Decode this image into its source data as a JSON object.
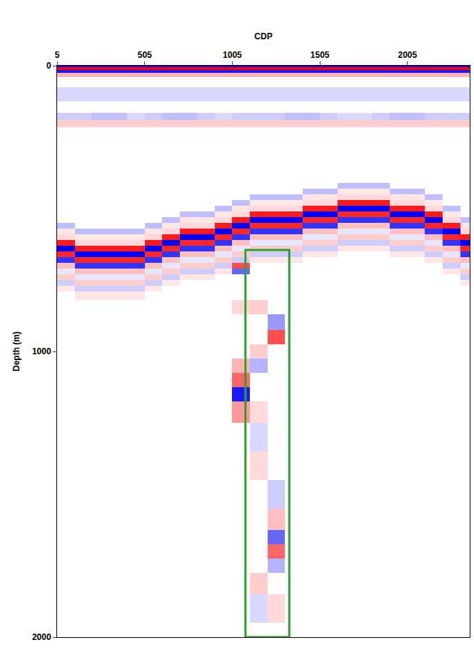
{
  "chart_data": {
    "type": "heatmap",
    "x_label": "CDP",
    "y_label": "Depth (m)",
    "xlim": [
      5,
      2360
    ],
    "xticks": [
      5,
      505,
      1005,
      1505,
      2005
    ],
    "ylim": [
      0,
      2000
    ],
    "yticks": [
      0,
      1000,
      2000
    ],
    "grid": false,
    "zlim": [
      -1,
      1
    ],
    "colors": [
      "#0000ff",
      "#ffffff",
      "#ff0000"
    ],
    "box": {
      "x": [
        1080,
        1330
      ],
      "y": [
        645,
        2000
      ],
      "color": "#2ca02c"
    },
    "x": [
      55,
      155,
      255,
      355,
      455,
      555,
      655,
      755,
      855,
      955,
      1055,
      1155,
      1255,
      1355,
      1455,
      1555,
      1655,
      1755,
      1855,
      1955,
      2055,
      2155,
      2255,
      2355
    ],
    "y": [
      0,
      10,
      20,
      30,
      50,
      100,
      150,
      180,
      200,
      230,
      300,
      360,
      400,
      420,
      440,
      460,
      480,
      500,
      520,
      540,
      560,
      580,
      600,
      620,
      640,
      660,
      680,
      700,
      720,
      740,
      760,
      780,
      800,
      840,
      900,
      950,
      1000,
      1050,
      1100,
      1150,
      1200,
      1300,
      1400,
      1500,
      1600,
      1650,
      1700,
      1750,
      1800,
      1900,
      2000
    ],
    "z": [
      [
        -1,
        -1,
        -1,
        -1,
        -1,
        -1,
        -1,
        -1,
        -1,
        -1,
        -1,
        -1,
        -1,
        -1,
        -1,
        -1,
        -1,
        -1,
        -1,
        -1,
        -1,
        -1,
        -1,
        -1
      ],
      [
        1,
        1,
        1,
        1,
        1,
        1,
        1,
        1,
        1,
        1,
        1,
        1,
        1,
        1,
        1,
        1,
        1,
        1,
        1,
        1,
        1,
        1,
        1,
        1
      ],
      [
        -0.9,
        -0.9,
        -0.9,
        -0.9,
        -0.9,
        -0.9,
        -0.9,
        -0.9,
        -0.9,
        -0.9,
        -0.9,
        -0.9,
        -0.9,
        -0.9,
        -0.9,
        -0.9,
        -0.9,
        -0.9,
        -0.9,
        -0.9,
        -0.9,
        -0.9,
        -0.9,
        -0.9
      ],
      [
        0.3,
        0.3,
        0.3,
        0.3,
        0.3,
        0.3,
        0.3,
        0.3,
        0.3,
        0.3,
        0.3,
        0.3,
        0.3,
        0.3,
        0.3,
        0.3,
        0.3,
        0.3,
        0.3,
        0.3,
        0.3,
        0.3,
        0.3,
        0.3
      ],
      [
        0,
        0,
        0,
        0,
        0,
        0,
        0,
        0,
        0,
        0,
        0,
        0,
        0,
        0,
        0,
        0,
        0,
        0,
        0,
        0,
        0,
        0,
        0,
        0
      ],
      [
        -0.15,
        -0.15,
        -0.15,
        -0.15,
        -0.15,
        -0.15,
        -0.15,
        -0.15,
        -0.15,
        -0.15,
        -0.15,
        -0.15,
        -0.15,
        -0.15,
        -0.15,
        -0.15,
        -0.15,
        -0.15,
        -0.15,
        -0.15,
        -0.15,
        -0.15,
        -0.15,
        -0.15
      ],
      [
        0,
        0,
        0,
        0,
        0,
        0,
        0,
        0,
        0,
        0,
        0,
        0,
        0,
        0,
        0,
        0,
        0,
        0,
        0,
        0,
        0,
        0,
        0,
        0
      ],
      [
        -0.2,
        -0.2,
        -0.25,
        -0.25,
        -0.15,
        -0.2,
        -0.25,
        -0.25,
        -0.2,
        -0.15,
        -0.2,
        -0.2,
        -0.2,
        -0.25,
        -0.25,
        -0.2,
        -0.15,
        -0.15,
        -0.2,
        -0.25,
        -0.25,
        -0.2,
        -0.2,
        -0.2
      ],
      [
        0.2,
        0.2,
        0.2,
        0.2,
        0.2,
        0.2,
        0.2,
        0.2,
        0.2,
        0.2,
        0.2,
        0.2,
        0.2,
        0.2,
        0.2,
        0.2,
        0.2,
        0.2,
        0.2,
        0.2,
        0.2,
        0.2,
        0.2,
        0.2
      ],
      [
        0,
        0,
        0,
        0,
        0,
        0,
        0,
        0,
        0,
        0,
        0,
        0,
        0,
        0,
        0,
        0,
        0,
        0,
        0,
        0,
        0,
        0,
        0,
        0
      ],
      [
        0,
        0,
        0,
        0,
        0,
        0,
        0,
        0,
        0,
        0,
        0,
        0,
        0,
        0,
        0,
        0,
        0,
        0,
        0,
        0,
        0,
        0,
        0,
        0
      ],
      [
        0,
        0,
        0,
        0,
        0,
        0,
        0,
        0,
        0,
        0,
        0,
        0,
        0,
        0,
        0,
        0,
        0,
        0,
        0,
        0,
        0,
        0,
        0,
        0
      ],
      [
        0,
        0,
        0,
        0,
        0,
        0,
        0,
        0,
        0,
        0,
        0,
        0,
        0,
        0,
        0,
        0,
        0,
        0,
        0,
        0,
        0,
        0,
        0,
        0
      ],
      [
        0,
        0,
        0,
        0,
        0,
        0,
        0,
        0,
        0,
        0,
        0,
        0,
        0,
        0,
        0,
        0,
        -0.25,
        -0.25,
        -0.25,
        0,
        0,
        0,
        0,
        0
      ],
      [
        0,
        0,
        0,
        0,
        0,
        0,
        0,
        0,
        0,
        0,
        0,
        0,
        0,
        0,
        -0.25,
        -0.25,
        0.1,
        0.1,
        0.1,
        -0.25,
        -0.25,
        0,
        0,
        0
      ],
      [
        0,
        0,
        0,
        0,
        0,
        0,
        0,
        0,
        0,
        0,
        0,
        -0.25,
        -0.25,
        -0.25,
        0.1,
        0.1,
        0.15,
        0.15,
        0.15,
        0.1,
        0.1,
        -0.25,
        0,
        0
      ],
      [
        0,
        0,
        0,
        0,
        0,
        0,
        0,
        0,
        0,
        0,
        -0.25,
        0.1,
        0.1,
        0.1,
        0.15,
        0.15,
        0.9,
        0.9,
        0.9,
        0.15,
        0.15,
        0.1,
        0,
        0
      ],
      [
        0,
        0,
        0,
        0,
        0,
        0,
        0,
        0,
        0,
        -0.25,
        0.1,
        0.15,
        0.15,
        0.15,
        0.9,
        0.9,
        -1,
        -1,
        -1,
        0.9,
        0.9,
        0.15,
        -0.25,
        0
      ],
      [
        0,
        0,
        0,
        0,
        0,
        0,
        0,
        -0.25,
        -0.25,
        0.1,
        0.15,
        0.9,
        0.9,
        0.9,
        -1,
        -1,
        0.85,
        0.85,
        0.85,
        -1,
        -1,
        0.9,
        0.1,
        0
      ],
      [
        0,
        0,
        0,
        0,
        0,
        0,
        -0.25,
        0.1,
        0.1,
        0.15,
        0.9,
        -1,
        -1,
        -1,
        0.85,
        0.85,
        -0.8,
        -0.8,
        -0.8,
        0.85,
        0.85,
        -1,
        0.15,
        -0.25
      ],
      [
        -0.25,
        0,
        0,
        0,
        0,
        -0.25,
        0.1,
        0.15,
        0.15,
        0.9,
        -1,
        0.85,
        0.85,
        0.85,
        -0.8,
        -0.8,
        0.25,
        0.25,
        0.25,
        -0.8,
        -0.8,
        0.85,
        0.9,
        0.1
      ],
      [
        0.1,
        -0.25,
        -0.25,
        -0.25,
        -0.25,
        0.1,
        0.15,
        0.9,
        0.9,
        -1,
        0.85,
        -0.8,
        -0.8,
        -0.8,
        0.25,
        0.25,
        -0.1,
        -0.1,
        -0.1,
        0.25,
        0.25,
        -0.8,
        -1,
        0.15
      ],
      [
        0.15,
        0.1,
        0.1,
        0.1,
        0.1,
        0.15,
        0.9,
        -1,
        -1,
        0.85,
        -0.8,
        0.25,
        0.25,
        0.25,
        -0.1,
        -0.1,
        0.2,
        0.2,
        0.2,
        -0.1,
        -0.1,
        0.25,
        0.85,
        0.9
      ],
      [
        0.9,
        0.15,
        0.15,
        0.15,
        0.15,
        0.9,
        -1,
        0.85,
        0.85,
        -0.8,
        0.25,
        -0.1,
        -0.1,
        -0.1,
        0.2,
        0.2,
        -0.2,
        -0.2,
        -0.2,
        0.2,
        0.2,
        -0.1,
        -0.8,
        -1
      ],
      [
        -1,
        0.9,
        0.9,
        0.9,
        0.9,
        -1,
        0.85,
        -0.8,
        -0.8,
        0.25,
        -0.1,
        0.2,
        0.2,
        0.2,
        -0.2,
        -0.2,
        0.1,
        0.1,
        0.1,
        -0.2,
        -0.2,
        0.2,
        0.25,
        0.85
      ],
      [
        0.85,
        -1,
        -1,
        -1,
        -1,
        0.85,
        -0.8,
        0.25,
        0.25,
        -0.1,
        0.2,
        -0.2,
        -0.2,
        -0.2,
        0.1,
        0.1,
        0,
        0,
        0,
        0.1,
        0.1,
        -0.2,
        -0.1,
        -0.8
      ],
      [
        -0.8,
        0.85,
        0.85,
        0.85,
        0.85,
        -0.8,
        0.25,
        -0.1,
        -0.1,
        0.2,
        -0.2,
        0.1,
        0.1,
        0.1,
        0,
        0,
        0,
        0,
        0,
        0,
        0,
        0.1,
        0.2,
        0.25
      ],
      [
        0.25,
        -0.8,
        -0.8,
        -0.8,
        -0.8,
        0.25,
        -0.1,
        0.2,
        0.2,
        -0.2,
        0.7,
        0,
        0,
        0,
        0,
        0,
        0,
        0,
        0,
        0,
        0,
        0,
        -0.2,
        -0.1
      ],
      [
        -0.1,
        0.25,
        0.25,
        0.25,
        0.25,
        -0.1,
        0.2,
        -0.2,
        -0.2,
        0.1,
        -0.6,
        0,
        0,
        0,
        0,
        0,
        0,
        0,
        0,
        0,
        0,
        0,
        0.1,
        0.2
      ],
      [
        0.2,
        -0.1,
        -0.1,
        -0.1,
        -0.1,
        0.2,
        -0.2,
        0.1,
        0.1,
        0,
        0,
        0,
        0,
        0,
        0,
        0,
        0,
        0,
        0,
        0,
        0,
        0,
        0,
        -0.2
      ],
      [
        -0.2,
        0.2,
        0.2,
        0.2,
        0.2,
        -0.2,
        0.1,
        0,
        0,
        0,
        0,
        0,
        0,
        0,
        0,
        0,
        0,
        0,
        0,
        0,
        0,
        0,
        0,
        0.1
      ],
      [
        0.1,
        -0.2,
        -0.2,
        -0.2,
        -0.2,
        0.1,
        0,
        0,
        0,
        0,
        0,
        0,
        0,
        0,
        0,
        0,
        0,
        0,
        0,
        0,
        0,
        0,
        0,
        0
      ],
      [
        0,
        0.1,
        0.1,
        0.1,
        0.1,
        0,
        0,
        0,
        0,
        0,
        0,
        0,
        0,
        0,
        0,
        0,
        0,
        0,
        0,
        0,
        0,
        0,
        0,
        0
      ],
      [
        0,
        0,
        0,
        0,
        0,
        0,
        0,
        0,
        0,
        0,
        0.15,
        0.2,
        0,
        0,
        0,
        0,
        0,
        0,
        0,
        0,
        0,
        0,
        0,
        0
      ],
      [
        0,
        0,
        0,
        0,
        0,
        0,
        0,
        0,
        0,
        0,
        0,
        0,
        -0.4,
        0,
        0,
        0,
        0,
        0,
        0,
        0,
        0,
        0,
        0,
        0
      ],
      [
        0,
        0,
        0,
        0,
        0,
        0,
        0,
        0,
        0,
        0,
        0,
        0,
        0.7,
        0,
        0,
        0,
        0,
        0,
        0,
        0,
        0,
        0,
        0,
        0
      ],
      [
        0,
        0,
        0,
        0,
        0,
        0,
        0,
        0,
        0,
        0,
        0,
        0.2,
        0,
        0,
        0,
        0,
        0,
        0,
        0,
        0,
        0,
        0,
        0,
        0
      ],
      [
        0,
        0,
        0,
        0,
        0,
        0,
        0,
        0,
        0,
        0,
        0.3,
        -0.3,
        0,
        0,
        0,
        0,
        0,
        0,
        0,
        0,
        0,
        0,
        0,
        0
      ],
      [
        0,
        0,
        0,
        0,
        0,
        0,
        0,
        0,
        0,
        0,
        0.6,
        0,
        0,
        0,
        0,
        0,
        0,
        0,
        0,
        0,
        0,
        0,
        0,
        0
      ],
      [
        0,
        0,
        0,
        0,
        0,
        0,
        0,
        0,
        0,
        0,
        -0.9,
        0,
        0,
        0,
        0,
        0,
        0,
        0,
        0,
        0,
        0,
        0,
        0,
        0
      ],
      [
        0,
        0,
        0,
        0,
        0,
        0,
        0,
        0,
        0,
        0,
        0.4,
        0.15,
        0,
        0,
        0,
        0,
        0,
        0,
        0,
        0,
        0,
        0,
        0,
        0
      ],
      [
        0,
        0,
        0,
        0,
        0,
        0,
        0,
        0,
        0,
        0,
        0,
        -0.15,
        0,
        0,
        0,
        0,
        0,
        0,
        0,
        0,
        0,
        0,
        0,
        0
      ],
      [
        0,
        0,
        0,
        0,
        0,
        0,
        0,
        0,
        0,
        0,
        0,
        0.15,
        0,
        0,
        0,
        0,
        0,
        0,
        0,
        0,
        0,
        0,
        0,
        0
      ],
      [
        0,
        0,
        0,
        0,
        0,
        0,
        0,
        0,
        0,
        0,
        0,
        0,
        -0.2,
        0,
        0,
        0,
        0,
        0,
        0,
        0,
        0,
        0,
        0,
        0
      ],
      [
        0,
        0,
        0,
        0,
        0,
        0,
        0,
        0,
        0,
        0,
        0,
        0,
        0.25,
        0,
        0,
        0,
        0,
        0,
        0,
        0,
        0,
        0,
        0,
        0
      ],
      [
        0,
        0,
        0,
        0,
        0,
        0,
        0,
        0,
        0,
        0,
        0,
        0,
        -0.6,
        0,
        0,
        0,
        0,
        0,
        0,
        0,
        0,
        0,
        0,
        0
      ],
      [
        0,
        0,
        0,
        0,
        0,
        0,
        0,
        0,
        0,
        0,
        0,
        0,
        0.6,
        0,
        0,
        0,
        0,
        0,
        0,
        0,
        0,
        0,
        0,
        0
      ],
      [
        0,
        0,
        0,
        0,
        0,
        0,
        0,
        0,
        0,
        0,
        0,
        0,
        -0.3,
        0,
        0,
        0,
        0,
        0,
        0,
        0,
        0,
        0,
        0,
        0
      ],
      [
        0,
        0,
        0,
        0,
        0,
        0,
        0,
        0,
        0,
        0,
        0,
        0.2,
        0,
        0,
        0,
        0,
        0,
        0,
        0,
        0,
        0,
        0,
        0,
        0
      ],
      [
        0,
        0,
        0,
        0,
        0,
        0,
        0,
        0,
        0,
        0,
        0,
        -0.15,
        0.15,
        0,
        0,
        0,
        0,
        0,
        0,
        0,
        0,
        0,
        0,
        0
      ],
      [
        0,
        0,
        0,
        0,
        0,
        0,
        0,
        0,
        0,
        0,
        0,
        0,
        0,
        0,
        0,
        0,
        0,
        0,
        0,
        0,
        0,
        0,
        0,
        0
      ]
    ]
  }
}
